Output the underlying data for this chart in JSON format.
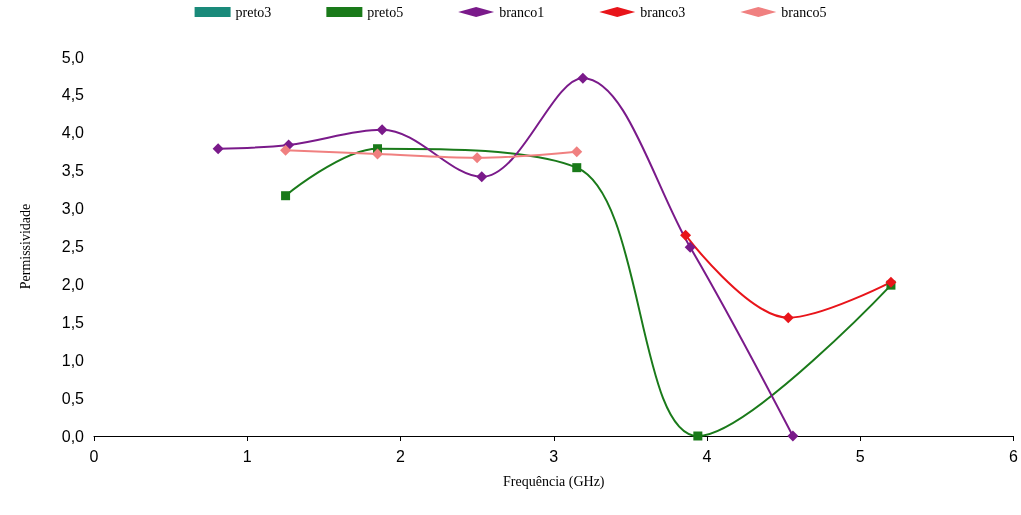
{
  "chart_data": {
    "type": "line",
    "xlabel": "Frequência (GHz)",
    "ylabel": "Permissividade",
    "xlim": [
      0,
      6
    ],
    "xticks": [
      0,
      1,
      2,
      3,
      4,
      5,
      6
    ],
    "ylim": [
      0,
      5
    ],
    "yticks": [
      {
        "value": 0,
        "label": "0,0"
      },
      {
        "value": 0.5,
        "label": "0,5"
      },
      {
        "value": 1,
        "label": "1,0"
      },
      {
        "value": 1.5,
        "label": "1,5"
      },
      {
        "value": 2,
        "label": "2,0"
      },
      {
        "value": 2.5,
        "label": "2,5"
      },
      {
        "value": 3,
        "label": "3,0"
      },
      {
        "value": 3.5,
        "label": "3,5"
      },
      {
        "value": 4,
        "label": "4,0"
      },
      {
        "value": 4.5,
        "label": "4,5"
      },
      {
        "value": 5,
        "label": "5,0"
      }
    ],
    "grid": false,
    "legend": "top",
    "series": [
      {
        "name": "preto3",
        "color": "#1a8a7a",
        "marker": "square"
      },
      {
        "name": "preto5",
        "color": "#1a7a1a",
        "marker": "square",
        "x": [
          1.25,
          1.85,
          3.15,
          3.94,
          5.2
        ],
        "values": [
          3.17,
          3.79,
          3.54,
          0,
          1.99
        ]
      },
      {
        "name": "branco1",
        "color": "#7a1a8a",
        "marker": "diamond",
        "x": [
          0.81,
          1.27,
          1.88,
          2.53,
          3.19,
          3.89,
          4.56
        ],
        "values": [
          3.79,
          3.84,
          4.04,
          3.42,
          4.72,
          2.49,
          0
        ]
      },
      {
        "name": "branco3",
        "color": "#e8141a",
        "marker": "diamond",
        "x": [
          3.86,
          4.53,
          5.2
        ],
        "values": [
          2.65,
          1.56,
          2.03
        ]
      },
      {
        "name": "branco5",
        "color": "#f08080",
        "marker": "diamond",
        "x": [
          1.25,
          1.85,
          2.5,
          3.15
        ],
        "values": [
          3.77,
          3.72,
          3.67,
          3.75
        ]
      }
    ]
  }
}
